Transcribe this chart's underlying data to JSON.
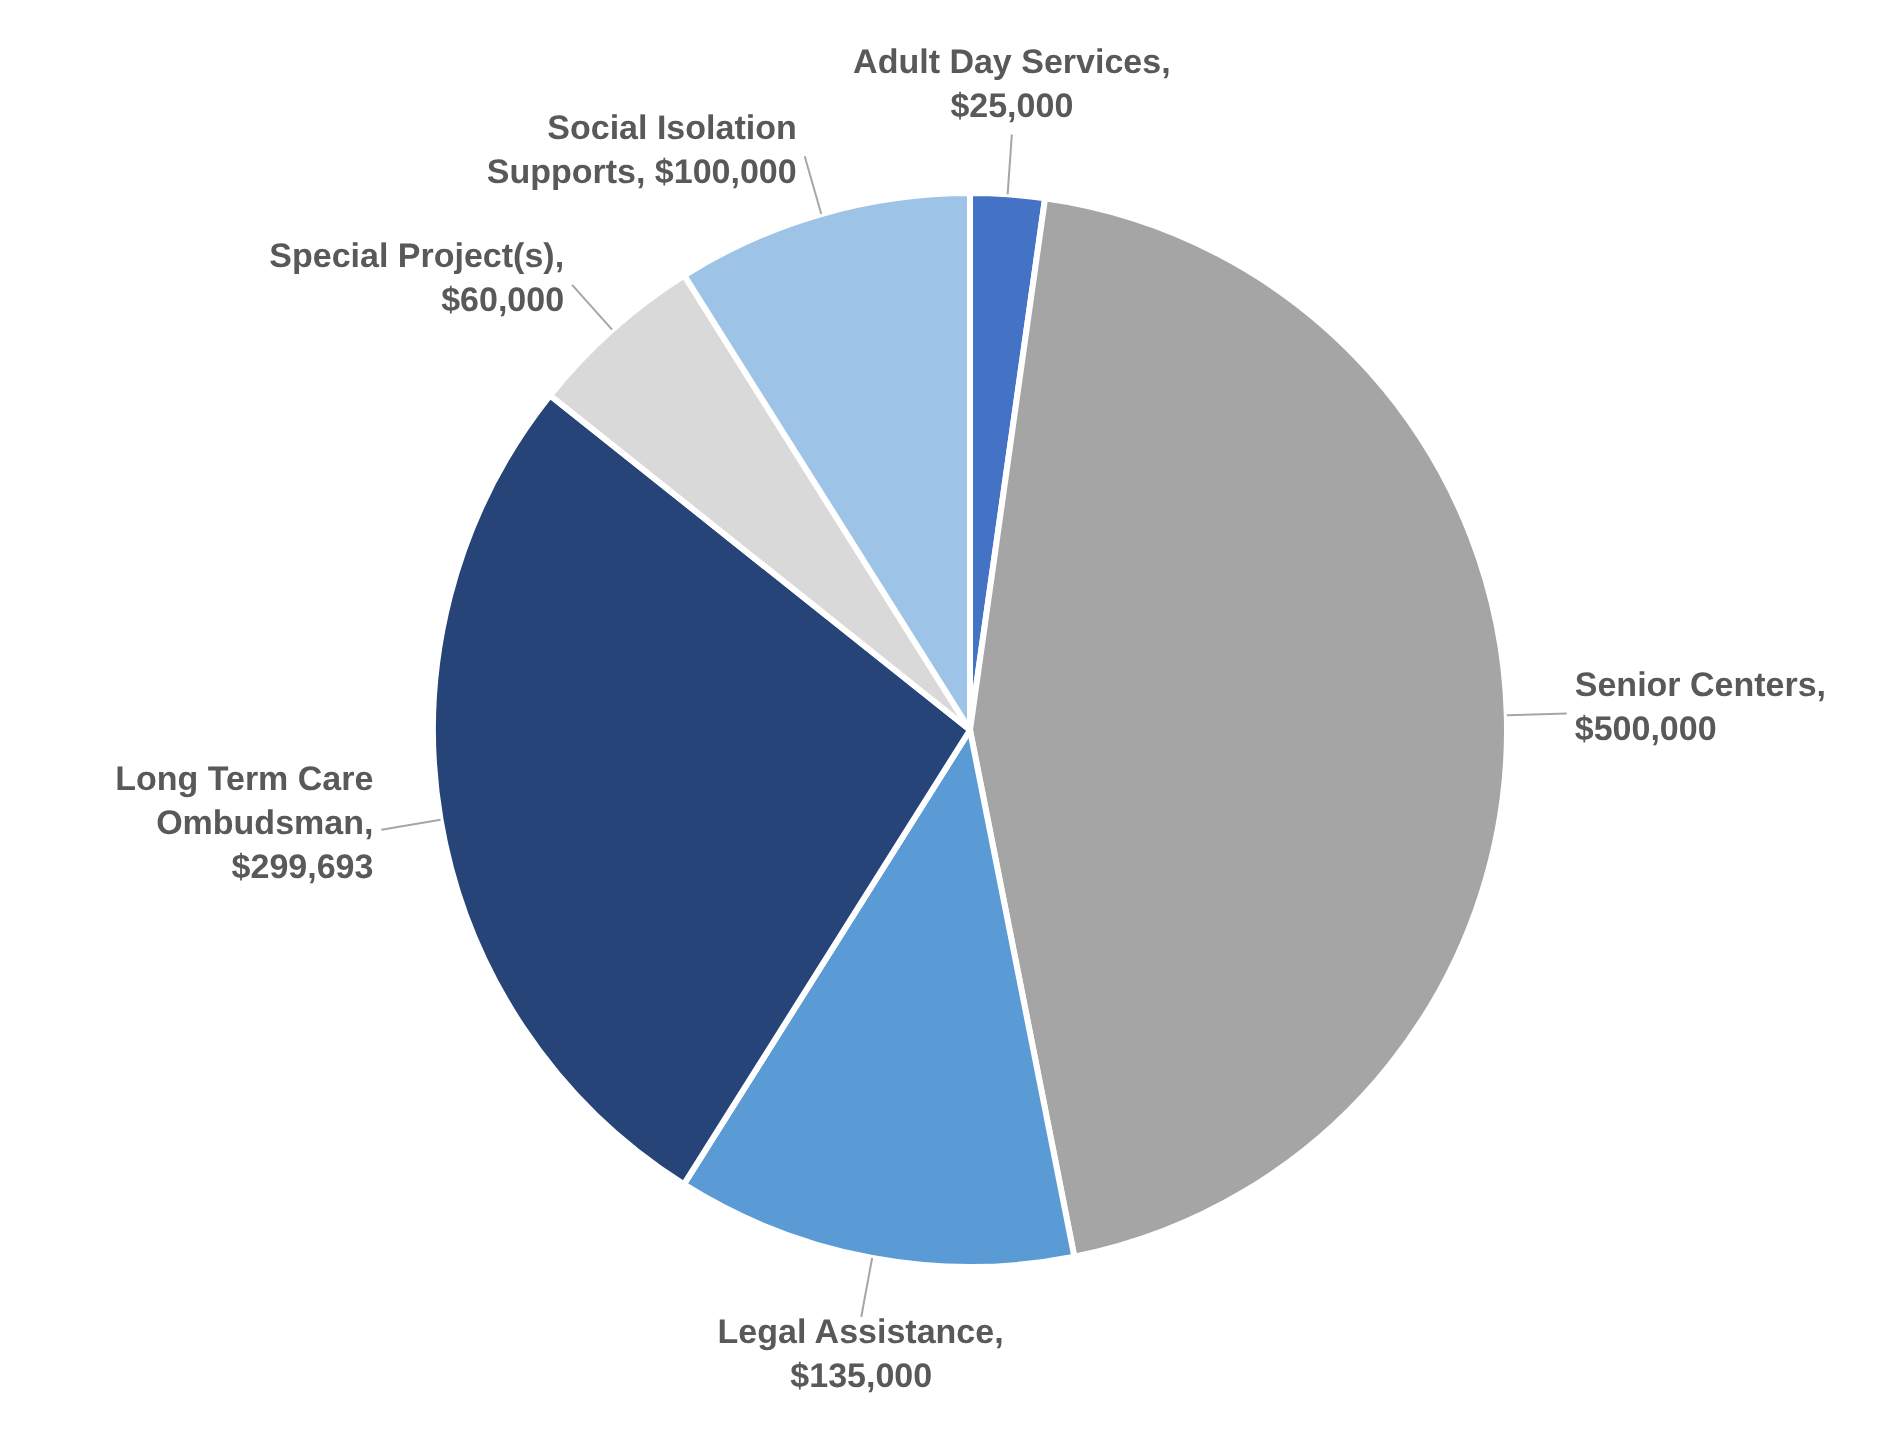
{
  "chart_data": {
    "type": "pie",
    "categories": [
      "Adult Day Services",
      "Senior Centers",
      "Legal Assistance",
      "Long Term Care Ombudsman",
      "Special Project(s)",
      "Social Isolation Supports"
    ],
    "values": [
      25000,
      500000,
      135000,
      299693,
      60000,
      100000
    ],
    "colors": [
      "#4472c4",
      "#a5a5a5",
      "#5b9bd5",
      "#264478",
      "#d9d9d9",
      "#9dc3e6"
    ],
    "value_labels": [
      ", $25,000",
      ", $500,000",
      ", $135,000",
      ", $299,693",
      ", $60,000",
      ", $100,000"
    ],
    "legend": false
  }
}
